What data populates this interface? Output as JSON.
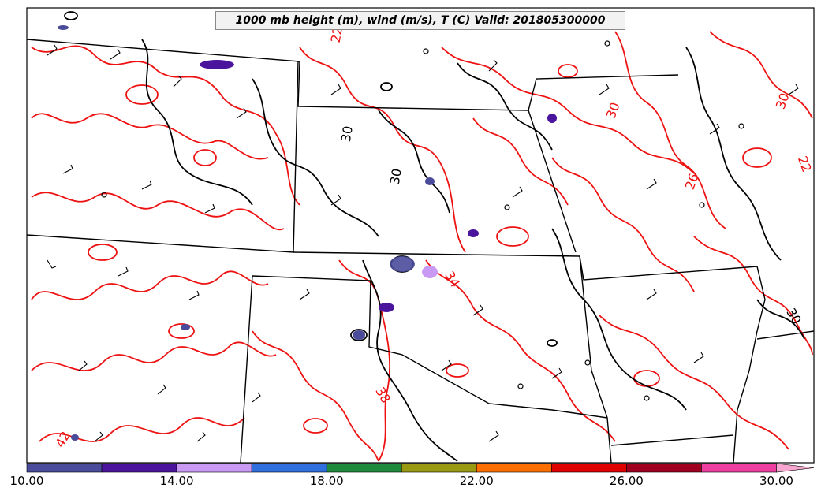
{
  "title": "1000 mb height (m), wind (m/s), T (C) Valid: 201805300000",
  "contour_labels": {
    "t30_ne": "30",
    "t30_ne2": "30",
    "t26": "26",
    "t22_e": "22",
    "t34": "34",
    "t38": "38",
    "t42": "42",
    "t22_n": "22",
    "t30_c": "30",
    "t30_c2": "30",
    "t30_se": "30"
  },
  "colorbar": {
    "ticks": [
      "10.00",
      "14.00",
      "18.00",
      "22.00",
      "26.00",
      "30.00"
    ],
    "min": 10,
    "max": 31,
    "bins": [
      {
        "from": 10,
        "to": 12,
        "color": "#4b4b9b"
      },
      {
        "from": 12,
        "to": 14,
        "color": "#4a149c"
      },
      {
        "from": 14,
        "to": 16,
        "color": "#c99af3"
      },
      {
        "from": 16,
        "to": 18,
        "color": "#2f6fde"
      },
      {
        "from": 18,
        "to": 20,
        "color": "#1f8a3c"
      },
      {
        "from": 20,
        "to": 22,
        "color": "#9a9a12"
      },
      {
        "from": 22,
        "to": 24,
        "color": "#ff6f00"
      },
      {
        "from": 24,
        "to": 26,
        "color": "#e00000"
      },
      {
        "from": 26,
        "to": 28,
        "color": "#a00020"
      },
      {
        "from": 28,
        "to": 30,
        "color": "#ee3fa0"
      },
      {
        "from": 30,
        "to": 31,
        "color": "#f7a6cf"
      }
    ]
  },
  "colors": {
    "temperature_contour": "#ee1111",
    "height_contour": "#000000",
    "state_border": "#000000"
  }
}
